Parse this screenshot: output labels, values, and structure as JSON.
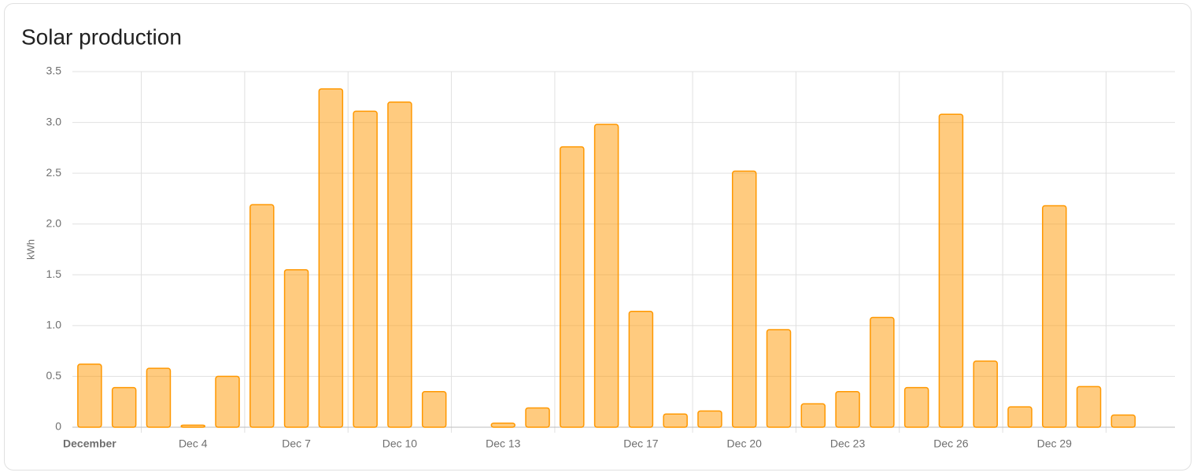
{
  "chart_data": {
    "type": "bar",
    "title": "Solar production",
    "y_label": "kWh",
    "categories": [
      "December",
      null,
      null,
      "Dec 4",
      null,
      null,
      "Dec 7",
      null,
      null,
      "Dec 10",
      null,
      null,
      "Dec 13",
      null,
      null,
      null,
      "Dec 17",
      null,
      null,
      "Dec 20",
      null,
      null,
      "Dec 23",
      null,
      null,
      "Dec 26",
      null,
      null,
      "Dec 29",
      null,
      null
    ],
    "values": [
      0.62,
      0.39,
      0.58,
      0.02,
      0.5,
      2.19,
      1.55,
      3.33,
      3.11,
      3.2,
      0.35,
      0,
      0.04,
      0.19,
      2.76,
      2.98,
      1.14,
      0.13,
      0.16,
      2.52,
      0.96,
      0.23,
      0.35,
      1.08,
      0.39,
      3.08,
      0.65,
      0.2,
      2.18,
      0.4,
      0.12
    ],
    "color": "#ff9800",
    "ylim": [
      0,
      3.5
    ],
    "yticks": [
      0,
      0.5,
      {
        "value": 1,
        "label": "1.0"
      },
      1.5,
      {
        "value": 2,
        "label": "2.0"
      },
      2.5,
      {
        "value": 3,
        "label": "3.0"
      },
      3.5
    ],
    "grid": true
  }
}
